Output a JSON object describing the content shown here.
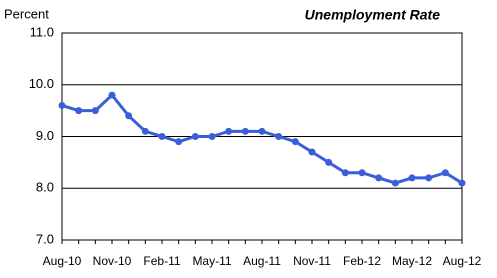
{
  "chart_data": {
    "type": "line",
    "title": "Unemployment Rate",
    "y_label": "Percent",
    "categories": [
      "Aug-10",
      null,
      null,
      "Nov-10",
      null,
      null,
      "Feb-11",
      null,
      null,
      "May-11",
      null,
      null,
      "Aug-11",
      null,
      null,
      "Nov-11",
      null,
      null,
      "Feb-12",
      null,
      null,
      "May-12",
      null,
      null,
      "Aug-12"
    ],
    "series": [
      {
        "name": "Unemployment Rate",
        "color": "#3a5fd9",
        "values": [
          9.6,
          9.5,
          9.5,
          9.8,
          9.4,
          9.1,
          9.0,
          8.9,
          9.0,
          9.0,
          9.1,
          9.1,
          9.1,
          9.0,
          8.9,
          8.7,
          8.5,
          8.3,
          8.3,
          8.2,
          8.1,
          8.2,
          8.2,
          8.3,
          8.1
        ]
      }
    ],
    "ylim": [
      7.0,
      11.0
    ],
    "yticks": [
      {
        "value": 7,
        "label": "7.0"
      },
      {
        "value": 8,
        "label": "8.0"
      },
      {
        "value": 9,
        "label": "9.0"
      },
      {
        "value": 10,
        "label": "10.0"
      },
      {
        "value": 11,
        "label": "11.0"
      }
    ],
    "grid": true
  }
}
